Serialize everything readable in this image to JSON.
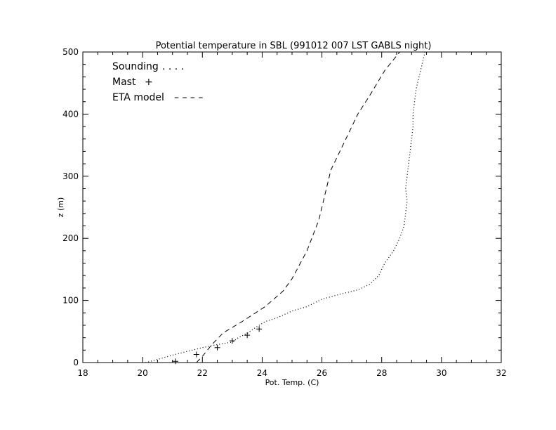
{
  "chart_data": {
    "type": "line",
    "title": "Potential temperature in SBL (991012 007 LST GABLS night)",
    "xlabel": "Pot. Temp. (C)",
    "ylabel": "z (m)",
    "xlim": [
      18,
      32
    ],
    "ylim": [
      0,
      500
    ],
    "xticks": [
      18,
      20,
      22,
      24,
      26,
      28,
      30,
      32
    ],
    "yticks": [
      0,
      100,
      200,
      300,
      400,
      500
    ],
    "x_tick_labels": [
      "18",
      "20",
      "22",
      "24",
      "26",
      "28",
      "30",
      "32"
    ],
    "y_tick_labels": [
      "0",
      "100",
      "200",
      "300",
      "400",
      "500"
    ],
    "grid": false,
    "legend": {
      "placement": "top-left",
      "entries": [
        {
          "label": "Sounding",
          "marker": " . . . ."
        },
        {
          "label": "Mast",
          "marker": "+"
        },
        {
          "label": "ETA model",
          "marker": "– – – –"
        }
      ]
    },
    "series": [
      {
        "name": "Sounding",
        "style": "dotted",
        "color": "#000000",
        "points": [
          [
            20.1,
            0
          ],
          [
            20.5,
            5
          ],
          [
            21.0,
            12
          ],
          [
            21.5,
            18
          ],
          [
            22.0,
            24
          ],
          [
            22.5,
            29
          ],
          [
            23.0,
            33
          ],
          [
            23.2,
            40
          ],
          [
            23.5,
            47
          ],
          [
            23.8,
            57
          ],
          [
            24.1,
            66
          ],
          [
            24.5,
            72
          ],
          [
            25.0,
            83
          ],
          [
            25.5,
            90
          ],
          [
            26.0,
            102
          ],
          [
            26.6,
            110
          ],
          [
            27.2,
            117
          ],
          [
            27.6,
            126
          ],
          [
            27.9,
            140
          ],
          [
            28.1,
            160
          ],
          [
            28.4,
            180
          ],
          [
            28.6,
            200
          ],
          [
            28.75,
            220
          ],
          [
            28.8,
            240
          ],
          [
            28.85,
            260
          ],
          [
            28.8,
            280
          ],
          [
            28.85,
            300
          ],
          [
            28.9,
            320
          ],
          [
            28.95,
            340
          ],
          [
            29.0,
            360
          ],
          [
            29.05,
            380
          ],
          [
            29.05,
            400
          ],
          [
            29.1,
            420
          ],
          [
            29.15,
            440
          ],
          [
            29.25,
            460
          ],
          [
            29.35,
            480
          ],
          [
            29.45,
            500
          ]
        ]
      },
      {
        "name": "Mast",
        "style": "markers",
        "marker": "+",
        "color": "#000000",
        "points": [
          [
            21.1,
            2
          ],
          [
            21.8,
            13
          ],
          [
            22.5,
            24
          ],
          [
            23.0,
            35
          ],
          [
            23.5,
            44
          ],
          [
            23.9,
            54
          ]
        ]
      },
      {
        "name": "ETA model",
        "style": "dashed",
        "color": "#000000",
        "points": [
          [
            21.8,
            0
          ],
          [
            22.0,
            10
          ],
          [
            22.3,
            28
          ],
          [
            22.7,
            48
          ],
          [
            23.3,
            65
          ],
          [
            24.1,
            90
          ],
          [
            24.7,
            115
          ],
          [
            25.0,
            135
          ],
          [
            25.5,
            180
          ],
          [
            25.9,
            230
          ],
          [
            26.1,
            270
          ],
          [
            26.3,
            310
          ],
          [
            26.7,
            350
          ],
          [
            27.2,
            400
          ],
          [
            27.6,
            430
          ],
          [
            28.1,
            470
          ],
          [
            28.6,
            500
          ]
        ]
      }
    ]
  }
}
